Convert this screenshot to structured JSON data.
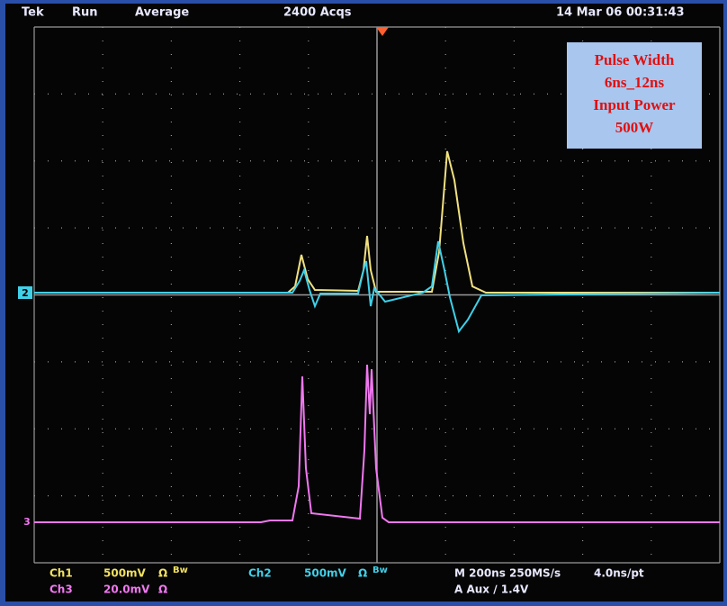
{
  "header": {
    "brand": "Tek",
    "mode": "Run",
    "acquire": "Average",
    "count": "2400 Acqs",
    "timestamp": "14 Mar 06 00:31:43"
  },
  "annotation": {
    "lines": [
      "Pulse Width",
      "6ns_12ns",
      "Input Power",
      "500W"
    ]
  },
  "markers": {
    "ch2": "2",
    "ch3": "3"
  },
  "footer": {
    "ch1": {
      "name": "Ch1",
      "scale": "500mV",
      "coupling": "Ω",
      "bw": "Bw"
    },
    "ch2": {
      "name": "Ch2",
      "scale": "500mV",
      "coupling": "Ω",
      "bw": "Bw"
    },
    "ch3": {
      "name": "Ch3",
      "scale": "20.0mV",
      "coupling": "Ω"
    },
    "timebase": "M 200ns 250MS/s",
    "resolution": "4.0ns/pt",
    "trigger": "A Aux ∕ 1.4V"
  }
}
